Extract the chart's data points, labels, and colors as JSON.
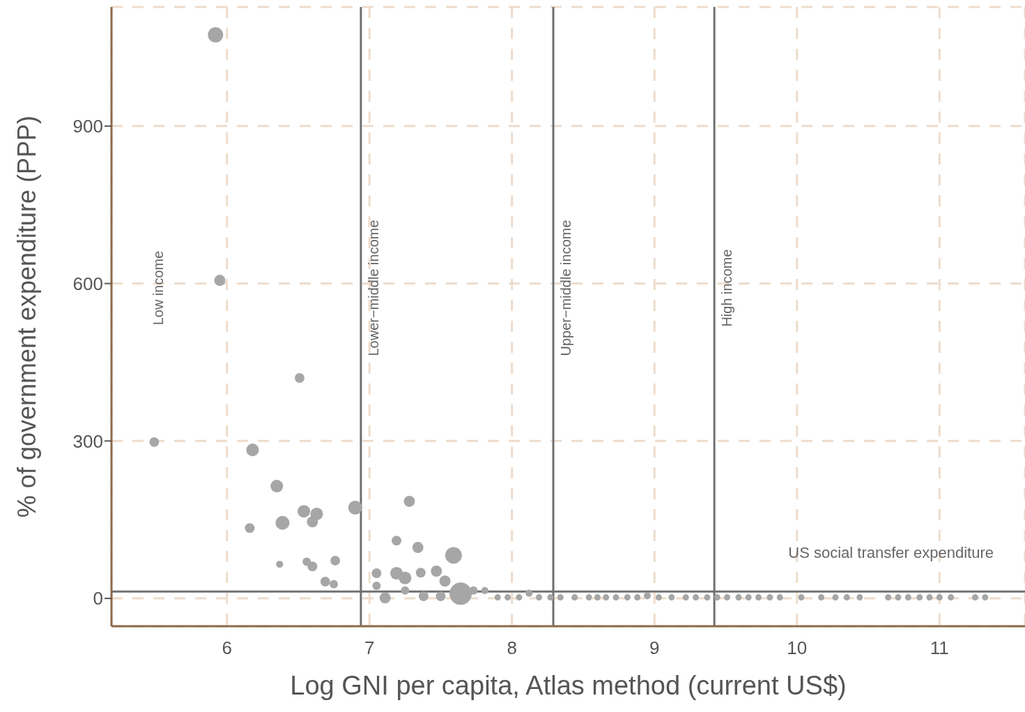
{
  "chart_data": {
    "type": "bubble",
    "xlabel": "Log GNI per capita, Atlas method (current US$)",
    "ylabel": "% of government expenditure (PPP)",
    "xlim": [
      5.19,
      11.6
    ],
    "xticks": [
      6,
      7,
      8,
      9,
      10,
      11
    ],
    "ylim": [
      -53,
      1127
    ],
    "yticks": [
      0,
      300,
      600,
      900
    ],
    "grid": true,
    "marker": "circle",
    "annotations": [
      "Low income"
    ],
    "ref_lines": [
      {
        "axis": "x",
        "value": 6.94,
        "label": "Lower−middle income",
        "color": "#707070"
      },
      {
        "axis": "x",
        "value": 8.29,
        "label": "Upper−middle income",
        "color": "#707070"
      },
      {
        "axis": "x",
        "value": 9.42,
        "label": "High income",
        "color": "#707070"
      },
      {
        "axis": "y",
        "value": 13,
        "label": "US social transfer expenditure",
        "color": "#707070"
      }
    ],
    "series": [
      {
        "color": "#a6a6a6",
        "x": [
          5.92,
          5.95,
          5.49,
          6.51,
          6.18,
          6.35,
          6.16,
          6.39,
          6.54,
          6.63,
          6.6,
          6.9,
          6.37,
          6.56,
          6.6,
          6.76,
          6.69,
          6.75,
          7.28,
          7.19,
          7.34,
          7.59,
          7.05,
          7.19,
          7.25,
          7.36,
          7.47,
          7.53,
          7.05,
          7.64,
          7.11,
          7.25,
          7.38,
          7.5,
          7.73,
          7.81,
          7.9,
          7.97,
          8.05,
          8.12,
          8.19,
          8.27,
          8.34,
          8.44,
          8.54,
          8.6,
          8.66,
          8.73,
          8.81,
          8.88,
          8.95,
          9.03,
          9.12,
          9.22,
          9.29,
          9.37,
          9.44,
          9.51,
          9.59,
          9.66,
          9.73,
          9.81,
          9.88,
          10.03,
          10.17,
          10.27,
          10.35,
          10.44,
          10.64,
          10.71,
          10.78,
          10.86,
          10.93,
          11.0,
          11.08,
          11.25,
          11.32
        ],
        "values": [
          1074,
          606,
          298,
          420,
          283,
          214,
          134,
          144,
          166,
          161,
          146,
          173,
          65,
          70,
          61,
          72,
          32,
          27,
          185,
          110,
          97,
          82,
          48,
          48,
          39,
          49,
          52,
          33,
          24,
          9,
          1,
          15,
          4,
          4,
          15,
          15,
          2,
          2,
          2,
          10,
          2,
          2,
          2,
          2,
          2,
          2,
          2,
          2,
          2,
          2,
          5,
          2,
          2,
          2,
          2,
          2,
          2,
          2,
          2,
          2,
          2,
          2,
          2,
          2,
          2,
          2,
          2,
          2,
          2,
          2,
          2,
          2,
          2,
          2,
          2,
          2,
          2
        ],
        "sizes": [
          0.47,
          0.25,
          0.19,
          0.19,
          0.32,
          0.32,
          0.19,
          0.39,
          0.32,
          0.32,
          0.25,
          0.39,
          0.1,
          0.14,
          0.19,
          0.19,
          0.19,
          0.14,
          0.25,
          0.19,
          0.25,
          0.56,
          0.19,
          0.32,
          0.32,
          0.19,
          0.25,
          0.25,
          0.14,
          1,
          0.25,
          0.14,
          0.19,
          0.19,
          0.14,
          0.1,
          0.08,
          0.08,
          0.08,
          0.1,
          0.08,
          0.08,
          0.08,
          0.08,
          0.08,
          0.08,
          0.08,
          0.08,
          0.08,
          0.08,
          0.1,
          0.08,
          0.08,
          0.08,
          0.08,
          0.08,
          0.08,
          0.08,
          0.08,
          0.08,
          0.08,
          0.08,
          0.08,
          0.08,
          0.08,
          0.08,
          0.08,
          0.08,
          0.08,
          0.08,
          0.08,
          0.08,
          0.08,
          0.08,
          0.08,
          0.08,
          0.08
        ]
      }
    ]
  }
}
